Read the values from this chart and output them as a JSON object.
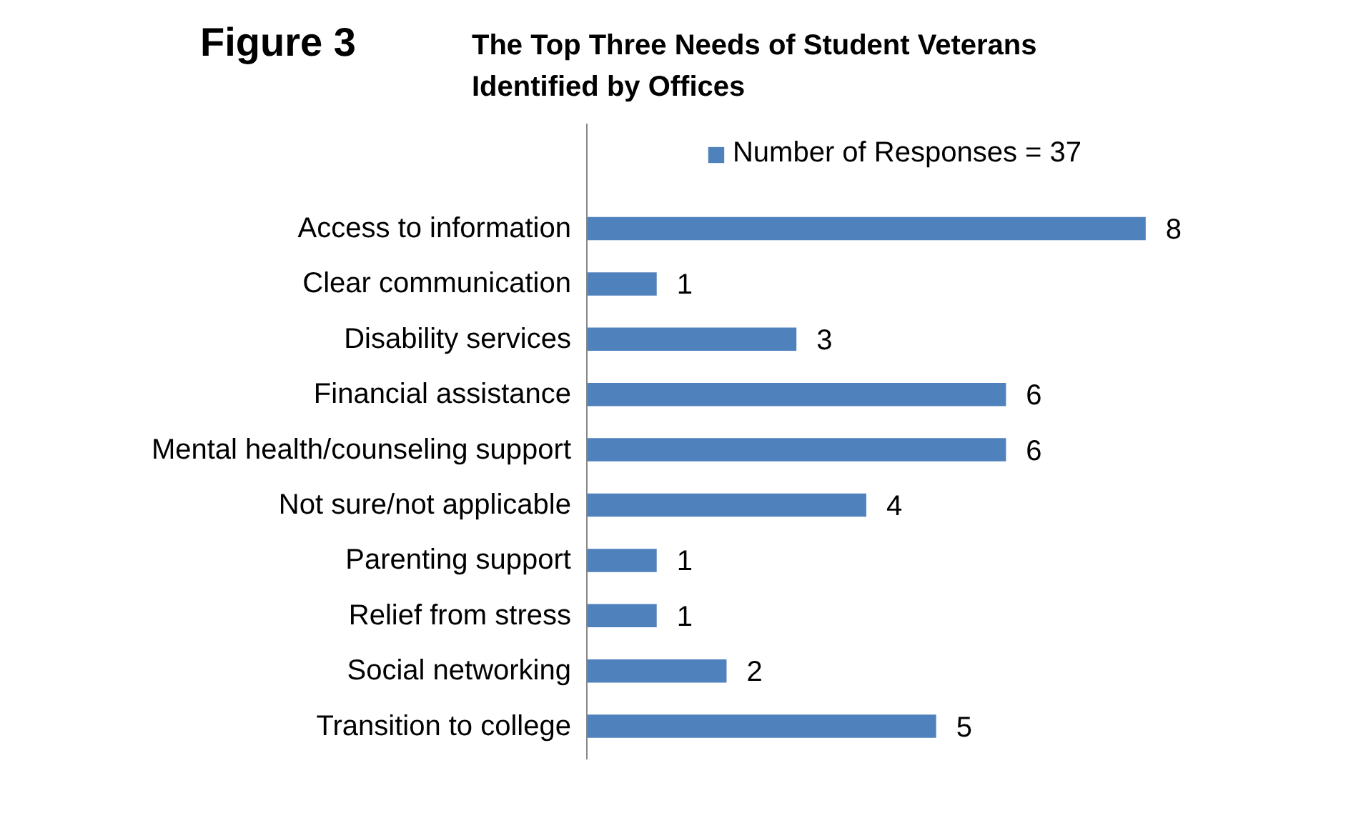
{
  "chart_data": {
    "type": "bar",
    "orientation": "horizontal",
    "title": "Figure 3",
    "subtitle": "The Top Three Needs of Student Veterans\nIdentified by Offices",
    "categories": [
      "Access to information",
      "Clear communication",
      "Disability services",
      "Financial assistance",
      "Mental health/counseling support",
      "Not sure/not applicable",
      "Parenting support",
      "Relief from stress",
      "Social networking",
      "Transition to college"
    ],
    "series": [
      {
        "name": "Number of Responses = 37",
        "color": "#4f81bd",
        "values": [
          8,
          1,
          3,
          6,
          6,
          4,
          1,
          1,
          2,
          5
        ]
      }
    ],
    "data_labels": true,
    "legend": "top",
    "grid": false
  }
}
